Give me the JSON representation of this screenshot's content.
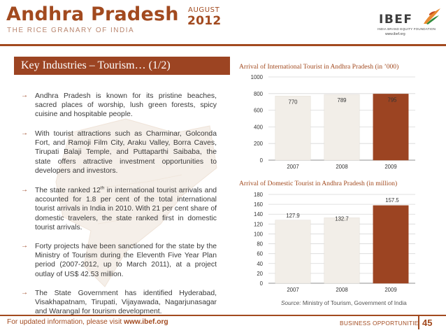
{
  "header": {
    "state_title": "Andhra Pradesh",
    "month": "AUGUST",
    "year": "2012",
    "subtitle": "THE RICE GRANARY OF INDIA"
  },
  "logo": {
    "name": "IBEF",
    "foundation": "INDIA BRAND EQUITY FOUNDATION",
    "url": "www.ibef.org"
  },
  "section": {
    "title": "Key Industries – Tourism… (1/2)"
  },
  "bullets": [
    {
      "text": "Andhra Pradesh is known for its pristine beaches, sacred places of worship, lush green forests, spicy cuisine and hospitable people."
    },
    {
      "text": "With tourist attractions such as Charminar, Golconda Fort, and Ramoji Film City, Araku Valley, Borra Caves, Tirupati Balaji Temple, and Puttaparthi Saibaba, the state offers attractive investment opportunities to developers and investors."
    },
    {
      "pre": "The state ranked 12",
      "sup": "th",
      "post": " in international tourist arrivals and accounted for 1.8 per cent of the total international tourist arrivals in India in 2010. With 21 per cent share of domestic travelers, the state ranked first in domestic tourist arrivals."
    },
    {
      "text": "Forty projects have been sanctioned for the state by the Ministry of Tourism during the Eleventh Five Year Plan period (2007-2012, up to March 2011), at a project outlay of US$ 42.53 million."
    },
    {
      "text": "The State Government has identified Hyderabad, Visakhapatnam, Tirupati, Vijayawada, Nagarjunasagar and Warangal for tourism development."
    }
  ],
  "source": {
    "label": "Source:",
    "text": " Ministry of Tourism, Government of India"
  },
  "footer": {
    "left_text": "For updated information, please visit ",
    "left_url": "www.ibef.org",
    "right_text": "BUSINESS OPPORTUNITIES",
    "page_number": "45"
  },
  "colors": {
    "brand": "#a24a1f",
    "bar_light": "#f2eee8",
    "bar_dark": "#9c4422",
    "text": "#3a3a3a"
  },
  "chart_data": [
    {
      "type": "bar",
      "title": "Arrival of International Tourist in Andhra Pradesh (in ’000)",
      "categories": [
        "2007",
        "2008",
        "2009"
      ],
      "values": [
        770,
        789,
        795
      ],
      "data_labels": [
        "770",
        "789",
        "795"
      ],
      "ylim": [
        0,
        1000
      ],
      "yticks": [
        0,
        200,
        400,
        600,
        800,
        1000
      ],
      "highlight_last": true,
      "grid": true
    },
    {
      "type": "bar",
      "title": "Arrival of Domestic Tourist in Andhra Pradesh (in million)",
      "categories": [
        "2007",
        "2008",
        "2009"
      ],
      "values": [
        127.9,
        132.7,
        157.5
      ],
      "data_labels": [
        "127.9",
        "132.7",
        "157.5"
      ],
      "ylim": [
        0,
        180
      ],
      "yticks": [
        0,
        20,
        40,
        60,
        80,
        100,
        120,
        140,
        160,
        180
      ],
      "highlight_last": true,
      "grid": true
    }
  ]
}
